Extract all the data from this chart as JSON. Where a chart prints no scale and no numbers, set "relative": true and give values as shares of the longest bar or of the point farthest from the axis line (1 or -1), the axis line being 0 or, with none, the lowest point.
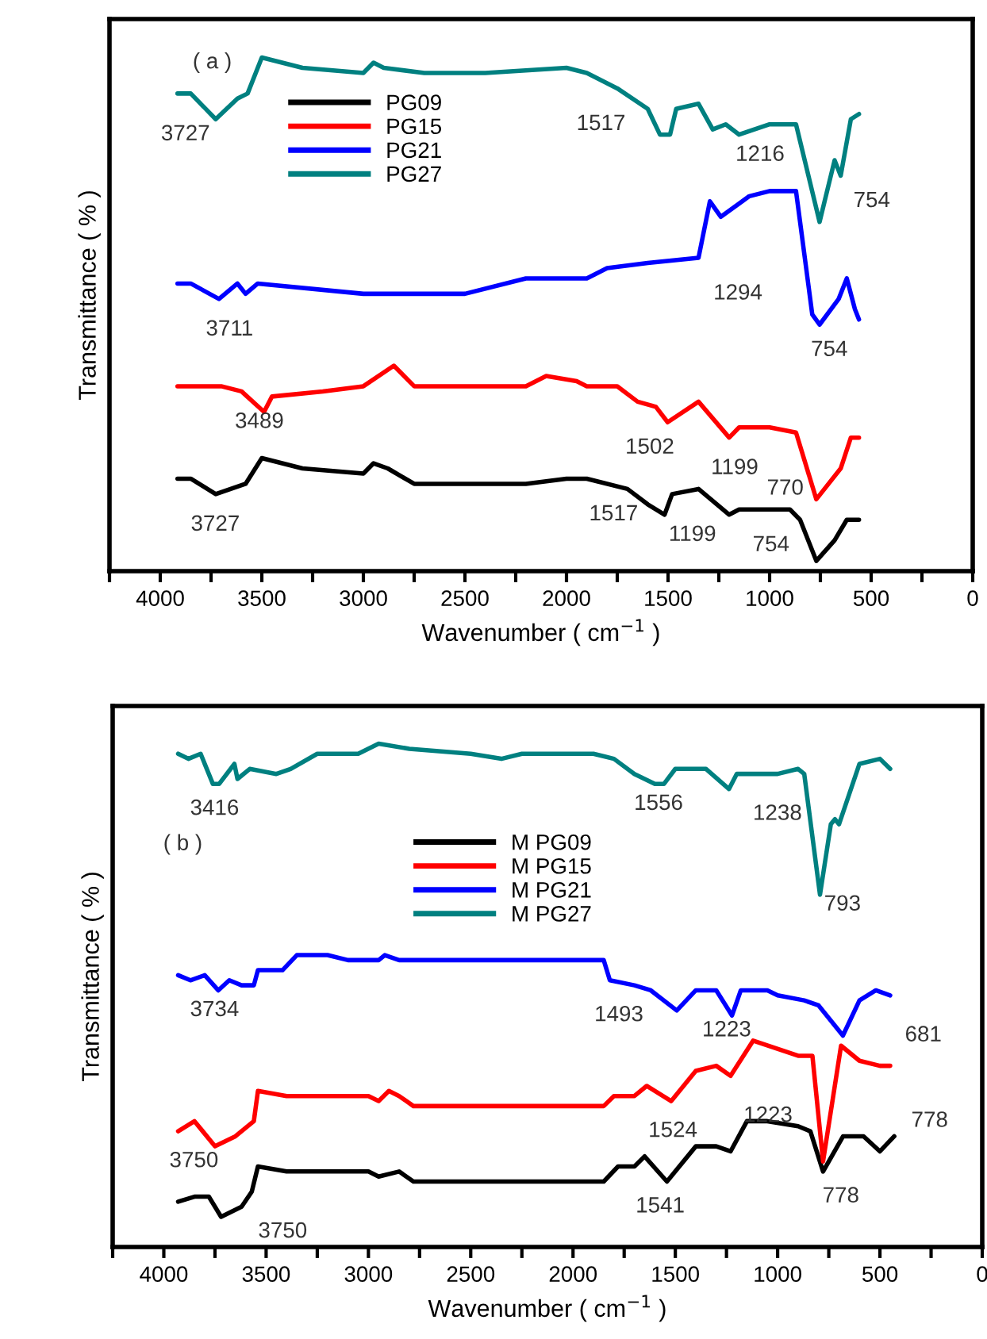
{
  "chart_data": [
    {
      "type": "line",
      "relative": true,
      "xlabel": "Wavenumber ( cm$^{−1}$ )",
      "ylabel": "Transmittance ( % )",
      "xlim": [
        4250,
        0
      ],
      "xticks": [
        {
          "value": 4250,
          "label": null
        },
        4000,
        {
          "value": 3750,
          "label": null
        },
        3500,
        {
          "value": 3250,
          "label": null
        },
        3000,
        {
          "value": 2750,
          "label": null
        },
        2500,
        {
          "value": 2250,
          "label": null
        },
        2000,
        {
          "value": 1750,
          "label": null
        },
        1500,
        {
          "value": 1250,
          "label": null
        },
        1000,
        {
          "value": 750,
          "label": null
        },
        500,
        {
          "value": 250,
          "label": null
        },
        0
      ],
      "tick_labels": "x",
      "legend": "top left",
      "series": [
        {
          "name": "PG09",
          "color": "#000000",
          "x": [
            3915,
            3850,
            3727,
            3580,
            3500,
            3300,
            3000,
            2950,
            2880,
            2750,
            2200,
            2000,
            1900,
            1700,
            1600,
            1517,
            1480,
            1350,
            1199,
            1150,
            1000,
            900,
            850,
            770,
            680,
            620,
            560
          ],
          "values": [
            0.18,
            0.18,
            0.15,
            0.17,
            0.22,
            0.2,
            0.19,
            0.21,
            0.2,
            0.17,
            0.17,
            0.18,
            0.18,
            0.16,
            0.13,
            0.11,
            0.15,
            0.16,
            0.11,
            0.12,
            0.12,
            0.12,
            0.1,
            0.02,
            0.06,
            0.1,
            0.1
          ]
        },
        {
          "name": "PG15",
          "color": "#ff0000",
          "x": [
            3915,
            3700,
            3600,
            3489,
            3450,
            3200,
            3000,
            2850,
            2750,
            2200,
            2100,
            1950,
            1900,
            1750,
            1650,
            1560,
            1502,
            1350,
            1199,
            1150,
            1000,
            870,
            770,
            650,
            600,
            560
          ],
          "values": [
            0.36,
            0.36,
            0.35,
            0.31,
            0.34,
            0.35,
            0.36,
            0.4,
            0.36,
            0.36,
            0.38,
            0.37,
            0.36,
            0.36,
            0.33,
            0.32,
            0.29,
            0.33,
            0.26,
            0.28,
            0.28,
            0.27,
            0.14,
            0.2,
            0.26,
            0.26
          ]
        },
        {
          "name": "PG21",
          "color": "#0000ff",
          "x": [
            3915,
            3850,
            3711,
            3620,
            3580,
            3520,
            3000,
            2700,
            2500,
            2200,
            1900,
            1800,
            1600,
            1350,
            1294,
            1240,
            1100,
            1000,
            870,
            790,
            754,
            660,
            620,
            580,
            560
          ],
          "values": [
            0.56,
            0.56,
            0.53,
            0.56,
            0.54,
            0.56,
            0.54,
            0.54,
            0.54,
            0.57,
            0.57,
            0.59,
            0.6,
            0.61,
            0.72,
            0.69,
            0.73,
            0.74,
            0.74,
            0.5,
            0.48,
            0.53,
            0.57,
            0.51,
            0.49
          ]
        },
        {
          "name": "PG27",
          "color": "#008080",
          "x": [
            3915,
            3850,
            3727,
            3620,
            3570,
            3500,
            3300,
            3000,
            2950,
            2900,
            2700,
            2400,
            2000,
            1900,
            1750,
            1600,
            1540,
            1490,
            1460,
            1350,
            1280,
            1216,
            1150,
            1000,
            870,
            754,
            680,
            650,
            600,
            560
          ],
          "values": [
            0.93,
            0.93,
            0.88,
            0.92,
            0.93,
            1.0,
            0.98,
            0.97,
            0.99,
            0.98,
            0.97,
            0.97,
            0.98,
            0.97,
            0.94,
            0.9,
            0.85,
            0.85,
            0.9,
            0.91,
            0.86,
            0.87,
            0.85,
            0.87,
            0.87,
            0.68,
            0.8,
            0.77,
            0.88,
            0.89
          ]
        }
      ],
      "annotations": [
        "( a )",
        "3727",
        "1517",
        "1216",
        "754",
        "1294",
        "3711",
        "754",
        "3489",
        "1502",
        "1199",
        "770",
        "3727",
        "1517",
        "1199",
        "754"
      ]
    },
    {
      "type": "line",
      "relative": true,
      "xlabel": "Wavenumber ( cm$^{−1}$ )",
      "ylabel": "Transmittance ( % )",
      "xlim": [
        4250,
        0
      ],
      "xticks": [
        {
          "value": 4250,
          "label": null
        },
        4000,
        {
          "value": 3750,
          "label": null
        },
        3500,
        {
          "value": 3250,
          "label": null
        },
        3000,
        {
          "value": 2750,
          "label": null
        },
        2500,
        {
          "value": 2250,
          "label": null
        },
        2000,
        {
          "value": 1750,
          "label": null
        },
        1500,
        {
          "value": 1250,
          "label": null
        },
        1000,
        {
          "value": 750,
          "label": null
        },
        500,
        {
          "value": 250,
          "label": null
        },
        0
      ],
      "tick_labels": "x",
      "legend": "top",
      "series": [
        {
          "name": "M PG09",
          "color": "#000000",
          "x": [
            3930,
            3850,
            3780,
            3720,
            3620,
            3570,
            3540,
            3400,
            3000,
            2950,
            2850,
            2780,
            1850,
            1780,
            1700,
            1650,
            1541,
            1400,
            1300,
            1230,
            1150,
            1050,
            900,
            840,
            778,
            680,
            580,
            500,
            430
          ],
          "values": [
            0.09,
            0.1,
            0.1,
            0.06,
            0.08,
            0.11,
            0.16,
            0.15,
            0.15,
            0.14,
            0.15,
            0.13,
            0.13,
            0.16,
            0.16,
            0.18,
            0.13,
            0.2,
            0.2,
            0.19,
            0.25,
            0.25,
            0.24,
            0.23,
            0.15,
            0.22,
            0.22,
            0.19,
            0.22
          ]
        },
        {
          "name": "M PG15",
          "color": "#ff0000",
          "x": [
            3930,
            3850,
            3750,
            3650,
            3560,
            3540,
            3400,
            3000,
            2950,
            2900,
            2850,
            2780,
            1850,
            1800,
            1700,
            1640,
            1520,
            1400,
            1300,
            1230,
            1120,
            900,
            830,
            778,
            690,
            600,
            500,
            450
          ],
          "values": [
            0.23,
            0.25,
            0.2,
            0.22,
            0.25,
            0.31,
            0.3,
            0.3,
            0.29,
            0.31,
            0.3,
            0.28,
            0.28,
            0.3,
            0.3,
            0.32,
            0.29,
            0.35,
            0.36,
            0.34,
            0.41,
            0.38,
            0.38,
            0.17,
            0.4,
            0.37,
            0.36,
            0.36
          ]
        },
        {
          "name": "M PG21",
          "color": "#0000ff",
          "x": [
            3930,
            3870,
            3800,
            3734,
            3680,
            3620,
            3560,
            3540,
            3420,
            3350,
            3200,
            3100,
            2950,
            2920,
            2850,
            2800,
            1850,
            1820,
            1700,
            1620,
            1493,
            1400,
            1300,
            1223,
            1180,
            1050,
            1000,
            870,
            800,
            681,
            600,
            520,
            450
          ],
          "values": [
            0.54,
            0.53,
            0.54,
            0.51,
            0.53,
            0.52,
            0.52,
            0.55,
            0.55,
            0.58,
            0.58,
            0.57,
            0.57,
            0.58,
            0.57,
            0.57,
            0.57,
            0.53,
            0.52,
            0.51,
            0.47,
            0.51,
            0.51,
            0.46,
            0.51,
            0.51,
            0.5,
            0.49,
            0.48,
            0.42,
            0.49,
            0.51,
            0.5
          ]
        },
        {
          "name": "M PG27",
          "color": "#008080",
          "x": [
            3930,
            3880,
            3820,
            3760,
            3730,
            3655,
            3640,
            3580,
            3450,
            3380,
            3250,
            3050,
            2950,
            2800,
            2500,
            2350,
            2250,
            1900,
            1800,
            1700,
            1600,
            1556,
            1500,
            1350,
            1238,
            1200,
            1000,
            900,
            870,
            793,
            740,
            720,
            700,
            600,
            500,
            450
          ],
          "values": [
            0.98,
            0.97,
            0.98,
            0.92,
            0.92,
            0.96,
            0.93,
            0.95,
            0.94,
            0.95,
            0.98,
            0.98,
            1.0,
            0.99,
            0.98,
            0.97,
            0.98,
            0.98,
            0.97,
            0.94,
            0.92,
            0.92,
            0.95,
            0.95,
            0.91,
            0.94,
            0.94,
            0.95,
            0.94,
            0.7,
            0.84,
            0.85,
            0.84,
            0.96,
            0.97,
            0.95
          ]
        }
      ],
      "annotations": [
        "3416",
        "1556",
        "1238",
        "( b )",
        "793",
        "3734",
        "1493",
        "1223",
        "681",
        "3750",
        "1524",
        "1223",
        "778",
        "778",
        "1541",
        "3750"
      ]
    }
  ]
}
